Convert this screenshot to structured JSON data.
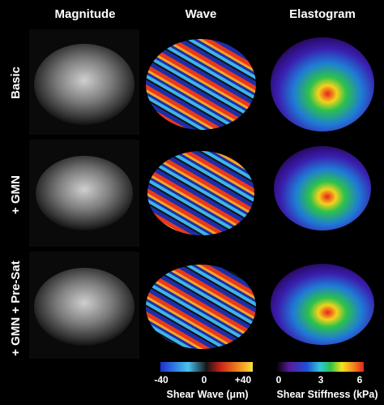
{
  "columns": [
    "Magnitude",
    "Wave",
    "Elastogram"
  ],
  "rows": [
    "Basic",
    "+ GMN",
    "+ GMN + Pre-Sat"
  ],
  "colorbars": [
    {
      "ticks": [
        "-40",
        "0",
        "+40"
      ],
      "label": "Shear Wave (μm)"
    },
    {
      "ticks": [
        "0",
        "3",
        "6"
      ],
      "label": "Shear Stiffness (kPa)"
    }
  ]
}
